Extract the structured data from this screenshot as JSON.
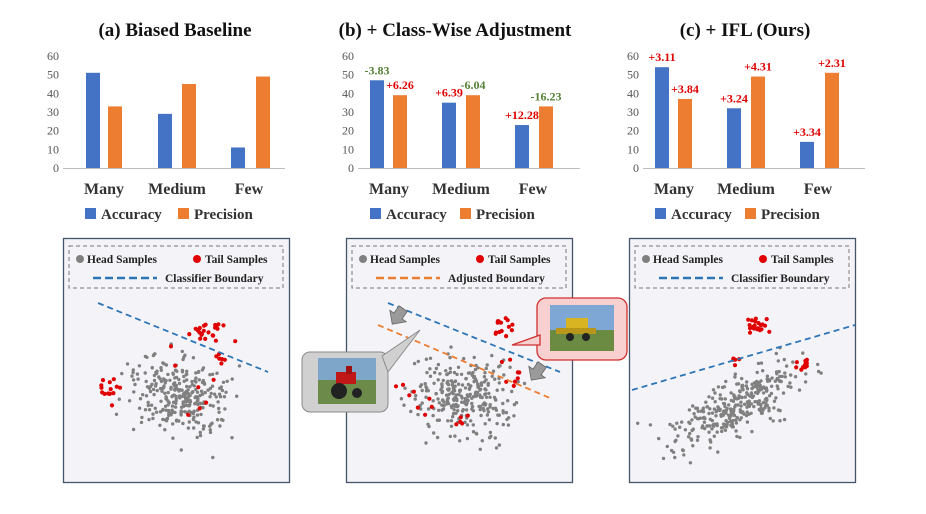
{
  "colors": {
    "accuracy": "#4472C4",
    "precision": "#ED7D31",
    "head": "#808080",
    "tail": "#E00000",
    "gain": "#E00000",
    "loss": "#548235",
    "box": "#44546A"
  },
  "chart_data": [
    {
      "type": "bar",
      "title": "(a) Biased Baseline",
      "categories": [
        "Many",
        "Medium",
        "Few"
      ],
      "ylim": [
        0,
        60
      ],
      "yticks": [
        0,
        10,
        20,
        30,
        40,
        50,
        60
      ],
      "legend": "bottom",
      "series": [
        {
          "name": "Accuracy",
          "values": [
            51,
            29,
            11
          ]
        },
        {
          "name": "Precision",
          "values": [
            33,
            45,
            49
          ]
        }
      ],
      "annotations": []
    },
    {
      "type": "bar",
      "title": "(b) + Class-Wise Adjustment",
      "categories": [
        "Many",
        "Medium",
        "Few"
      ],
      "ylim": [
        0,
        60
      ],
      "yticks": [
        0,
        10,
        20,
        30,
        40,
        50,
        60
      ],
      "legend": "bottom",
      "series": [
        {
          "name": "Accuracy",
          "values": [
            47,
            35,
            23
          ]
        },
        {
          "name": "Precision",
          "values": [
            39,
            39,
            33
          ]
        }
      ],
      "annotations": [
        {
          "series": 0,
          "index": 0,
          "text": "-3.83",
          "tone": "loss"
        },
        {
          "series": 1,
          "index": 0,
          "text": "+6.26",
          "tone": "gain"
        },
        {
          "series": 0,
          "index": 1,
          "text": "+6.39",
          "tone": "gain"
        },
        {
          "series": 1,
          "index": 1,
          "text": "-6.04",
          "tone": "loss"
        },
        {
          "series": 0,
          "index": 2,
          "text": "+12.28",
          "tone": "gain"
        },
        {
          "series": 1,
          "index": 2,
          "text": "-16.23",
          "tone": "loss"
        }
      ]
    },
    {
      "type": "bar",
      "title": "(c) + IFL (Ours)",
      "categories": [
        "Many",
        "Medium",
        "Few"
      ],
      "ylim": [
        0,
        60
      ],
      "yticks": [
        0,
        10,
        20,
        30,
        40,
        50,
        60
      ],
      "legend": "bottom",
      "series": [
        {
          "name": "Accuracy",
          "values": [
            54,
            32,
            14
          ]
        },
        {
          "name": "Precision",
          "values": [
            37,
            49,
            51
          ]
        }
      ],
      "annotations": [
        {
          "series": 0,
          "index": 0,
          "text": "+3.11",
          "tone": "gain"
        },
        {
          "series": 1,
          "index": 0,
          "text": "+3.84",
          "tone": "gain"
        },
        {
          "series": 0,
          "index": 1,
          "text": "+3.24",
          "tone": "gain"
        },
        {
          "series": 1,
          "index": 1,
          "text": "+4.31",
          "tone": "gain"
        },
        {
          "series": 0,
          "index": 2,
          "text": "+3.34",
          "tone": "gain"
        },
        {
          "series": 1,
          "index": 2,
          "text": "+2.31",
          "tone": "gain"
        }
      ]
    },
    {
      "type": "scatter",
      "legend_head": "Head Samples",
      "legend_tail": "Tail Samples",
      "boundary_label": "Classifier Boundary",
      "boundary_style": "blue-dashed",
      "pictures": []
    },
    {
      "type": "scatter",
      "legend_head": "Head Samples",
      "legend_tail": "Tail Samples",
      "boundary_label": "Adjusted Boundary",
      "boundary_style": "orange-dashed",
      "extra_boundary_style": "blue-dashed",
      "pictures": [
        "red-tractor-photo",
        "yellow-harvester-photo"
      ]
    },
    {
      "type": "scatter",
      "legend_head": "Head Samples",
      "legend_tail": "Tail Samples",
      "boundary_label": "Classifier Boundary",
      "boundary_style": "blue-dashed",
      "pictures": []
    }
  ]
}
